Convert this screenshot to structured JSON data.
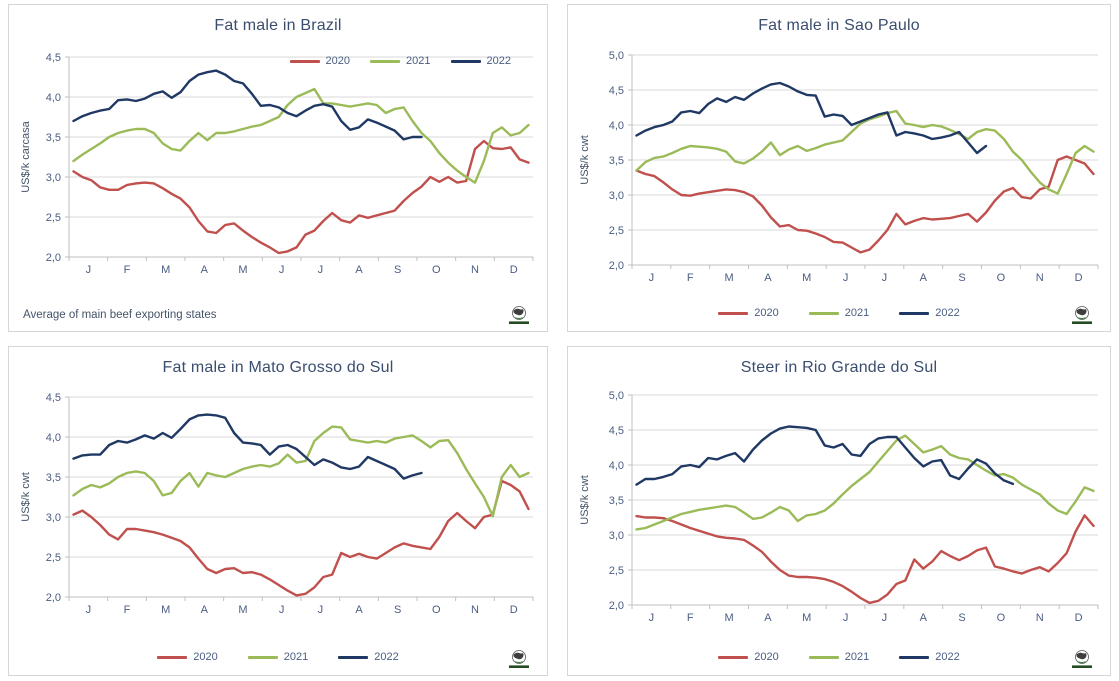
{
  "colors": {
    "red": "#C0504D",
    "green": "#9BBB59",
    "navy": "#1F3864",
    "grid": "#D9D9D9",
    "axis": "#BFBFBF",
    "tick_label": "#4A5D82",
    "title_text": "#3A4D6E"
  },
  "months": [
    "J",
    "F",
    "M",
    "A",
    "M",
    "J",
    "J",
    "A",
    "S",
    "O",
    "N",
    "D"
  ],
  "legend_years": [
    "2020",
    "2021",
    "2022"
  ],
  "chart_data": [
    {
      "type": "line",
      "title": "Fat male in Brazil",
      "ylabel": "US$/k carcasa",
      "footnote": "Average  of main beef exporting states",
      "ylim": [
        2.0,
        4.5
      ],
      "ytick_labels": [
        "2,0",
        "2,5",
        "3,0",
        "3,5",
        "4,0",
        "4,5"
      ],
      "x_unit": "weeks of year, labeled by month",
      "legend_position": "inside-top-right",
      "grid": true,
      "series": [
        {
          "name": "2020",
          "color_key": "red",
          "values": [
            3.07,
            3.0,
            2.96,
            2.87,
            2.84,
            2.84,
            2.9,
            2.92,
            2.93,
            2.92,
            2.86,
            2.79,
            2.73,
            2.62,
            2.45,
            2.32,
            2.3,
            2.4,
            2.42,
            2.33,
            2.25,
            2.18,
            2.12,
            2.05,
            2.07,
            2.12,
            2.28,
            2.33,
            2.45,
            2.55,
            2.46,
            2.43,
            2.52,
            2.49,
            2.52,
            2.55,
            2.58,
            2.7,
            2.8,
            2.88,
            3.0,
            2.94,
            3.0,
            2.93,
            2.95,
            3.35,
            3.45,
            3.36,
            3.35,
            3.37,
            3.22,
            3.18
          ]
        },
        {
          "name": "2021",
          "color_key": "green",
          "values": [
            3.2,
            3.28,
            3.35,
            3.42,
            3.5,
            3.55,
            3.58,
            3.6,
            3.6,
            3.55,
            3.42,
            3.35,
            3.33,
            3.45,
            3.55,
            3.46,
            3.55,
            3.55,
            3.57,
            3.6,
            3.63,
            3.65,
            3.7,
            3.75,
            3.9,
            4.0,
            4.05,
            4.1,
            3.92,
            3.92,
            3.9,
            3.88,
            3.9,
            3.92,
            3.9,
            3.8,
            3.85,
            3.87,
            3.7,
            3.55,
            3.45,
            3.3,
            3.18,
            3.08,
            3.0,
            2.93,
            3.2,
            3.55,
            3.62,
            3.52,
            3.55,
            3.65
          ]
        },
        {
          "name": "2022",
          "color_key": "navy",
          "values": [
            3.7,
            3.76,
            3.8,
            3.83,
            3.85,
            3.96,
            3.97,
            3.95,
            3.98,
            4.04,
            4.07,
            3.99,
            4.06,
            4.2,
            4.28,
            4.31,
            4.33,
            4.28,
            4.2,
            4.17,
            4.04,
            3.89,
            3.9,
            3.87,
            3.8,
            3.76,
            3.83,
            3.89,
            3.91,
            3.88,
            3.7,
            3.59,
            3.62,
            3.72,
            3.68,
            3.63,
            3.58,
            3.47,
            3.5,
            3.5
          ]
        }
      ]
    },
    {
      "type": "line",
      "title": "Fat male in Sao Paulo",
      "ylabel": "US$/k cwt",
      "ylim": [
        2.0,
        5.0
      ],
      "ytick_labels": [
        "2,0",
        "2,5",
        "3,0",
        "3,5",
        "4,0",
        "4,5",
        "5,0"
      ],
      "x_unit": "weeks of year, labeled by month",
      "legend_position": "bottom-center",
      "grid": true,
      "series": [
        {
          "name": "2020",
          "color_key": "red",
          "values": [
            3.35,
            3.3,
            3.27,
            3.18,
            3.08,
            3.0,
            2.99,
            3.02,
            3.04,
            3.06,
            3.08,
            3.07,
            3.04,
            2.98,
            2.85,
            2.68,
            2.55,
            2.57,
            2.5,
            2.49,
            2.45,
            2.4,
            2.33,
            2.32,
            2.25,
            2.18,
            2.22,
            2.35,
            2.5,
            2.73,
            2.58,
            2.63,
            2.67,
            2.65,
            2.66,
            2.67,
            2.7,
            2.73,
            2.62,
            2.75,
            2.92,
            3.05,
            3.1,
            2.97,
            2.95,
            3.08,
            3.12,
            3.5,
            3.55,
            3.5,
            3.45,
            3.3
          ]
        },
        {
          "name": "2021",
          "color_key": "green",
          "values": [
            3.35,
            3.47,
            3.53,
            3.55,
            3.6,
            3.66,
            3.7,
            3.69,
            3.68,
            3.66,
            3.62,
            3.48,
            3.45,
            3.52,
            3.62,
            3.75,
            3.57,
            3.65,
            3.7,
            3.63,
            3.67,
            3.72,
            3.75,
            3.78,
            3.9,
            4.02,
            4.08,
            4.12,
            4.17,
            4.2,
            4.02,
            4.0,
            3.97,
            4.0,
            3.98,
            3.93,
            3.87,
            3.8,
            3.9,
            3.94,
            3.92,
            3.8,
            3.62,
            3.5,
            3.33,
            3.18,
            3.08,
            3.02,
            3.3,
            3.6,
            3.7,
            3.62
          ]
        },
        {
          "name": "2022",
          "color_key": "navy",
          "values": [
            3.85,
            3.92,
            3.97,
            4.0,
            4.05,
            4.18,
            4.2,
            4.17,
            4.3,
            4.38,
            4.33,
            4.4,
            4.36,
            4.45,
            4.52,
            4.58,
            4.6,
            4.55,
            4.48,
            4.43,
            4.42,
            4.12,
            4.15,
            4.13,
            4.0,
            4.05,
            4.1,
            4.15,
            4.18,
            3.85,
            3.9,
            3.88,
            3.85,
            3.8,
            3.82,
            3.85,
            3.9,
            3.75,
            3.6,
            3.7
          ]
        }
      ]
    },
    {
      "type": "line",
      "title": "Fat male in Mato Grosso do Sul",
      "ylabel": "US$/k cwt",
      "ylim": [
        2.0,
        4.5
      ],
      "ytick_labels": [
        "2,0",
        "2,5",
        "3,0",
        "3,5",
        "4,0",
        "4,5"
      ],
      "x_unit": "weeks of year, labeled by month",
      "legend_position": "bottom-center",
      "grid": true,
      "series": [
        {
          "name": "2020",
          "color_key": "red",
          "values": [
            3.03,
            3.08,
            3.0,
            2.9,
            2.78,
            2.72,
            2.85,
            2.85,
            2.83,
            2.81,
            2.78,
            2.74,
            2.7,
            2.62,
            2.48,
            2.35,
            2.3,
            2.35,
            2.36,
            2.3,
            2.31,
            2.28,
            2.22,
            2.15,
            2.08,
            2.02,
            2.04,
            2.12,
            2.25,
            2.28,
            2.55,
            2.5,
            2.54,
            2.5,
            2.48,
            2.55,
            2.62,
            2.67,
            2.64,
            2.62,
            2.6,
            2.75,
            2.95,
            3.05,
            2.95,
            2.86,
            3.0,
            3.03,
            3.45,
            3.4,
            3.32,
            3.1
          ]
        },
        {
          "name": "2021",
          "color_key": "green",
          "values": [
            3.27,
            3.35,
            3.4,
            3.37,
            3.42,
            3.5,
            3.55,
            3.57,
            3.55,
            3.45,
            3.27,
            3.3,
            3.45,
            3.55,
            3.38,
            3.55,
            3.52,
            3.5,
            3.55,
            3.6,
            3.63,
            3.65,
            3.63,
            3.67,
            3.78,
            3.68,
            3.7,
            3.95,
            4.05,
            4.13,
            4.12,
            3.97,
            3.95,
            3.93,
            3.95,
            3.93,
            3.98,
            4.0,
            4.02,
            3.95,
            3.87,
            3.95,
            3.96,
            3.8,
            3.6,
            3.42,
            3.25,
            3.01,
            3.5,
            3.65,
            3.5,
            3.55
          ]
        },
        {
          "name": "2022",
          "color_key": "navy",
          "values": [
            3.73,
            3.77,
            3.78,
            3.78,
            3.9,
            3.95,
            3.93,
            3.97,
            4.02,
            3.98,
            4.05,
            3.99,
            4.1,
            4.22,
            4.27,
            4.28,
            4.27,
            4.24,
            4.05,
            3.93,
            3.92,
            3.9,
            3.78,
            3.88,
            3.9,
            3.85,
            3.75,
            3.65,
            3.72,
            3.68,
            3.62,
            3.6,
            3.63,
            3.75,
            3.7,
            3.65,
            3.6,
            3.48,
            3.52,
            3.55
          ]
        }
      ]
    },
    {
      "type": "line",
      "title": "Steer  in Rio Grande do Sul",
      "ylabel": "US$/k cwt",
      "ylim": [
        2.0,
        5.0
      ],
      "ytick_labels": [
        "2,0",
        "2,5",
        "3,0",
        "3,5",
        "4,0",
        "4,5",
        "5,0"
      ],
      "x_unit": "weeks of year, labeled by month",
      "legend_position": "bottom-center",
      "grid": true,
      "series": [
        {
          "name": "2020",
          "color_key": "red",
          "values": [
            3.27,
            3.25,
            3.25,
            3.24,
            3.2,
            3.15,
            3.1,
            3.06,
            3.02,
            2.98,
            2.96,
            2.95,
            2.93,
            2.85,
            2.76,
            2.62,
            2.5,
            2.42,
            2.4,
            2.4,
            2.39,
            2.37,
            2.33,
            2.27,
            2.19,
            2.1,
            2.03,
            2.06,
            2.15,
            2.3,
            2.35,
            2.65,
            2.52,
            2.62,
            2.77,
            2.7,
            2.64,
            2.7,
            2.78,
            2.82,
            2.55,
            2.52,
            2.48,
            2.45,
            2.5,
            2.54,
            2.48,
            2.6,
            2.74,
            3.05,
            3.28,
            3.13
          ]
        },
        {
          "name": "2021",
          "color_key": "green",
          "values": [
            3.08,
            3.1,
            3.15,
            3.2,
            3.25,
            3.3,
            3.33,
            3.36,
            3.38,
            3.4,
            3.42,
            3.4,
            3.32,
            3.23,
            3.25,
            3.32,
            3.4,
            3.35,
            3.2,
            3.28,
            3.3,
            3.35,
            3.45,
            3.58,
            3.7,
            3.8,
            3.9,
            4.05,
            4.2,
            4.35,
            4.42,
            4.3,
            4.18,
            4.22,
            4.27,
            4.15,
            4.1,
            4.08,
            4.0,
            3.92,
            3.85,
            3.87,
            3.82,
            3.72,
            3.65,
            3.58,
            3.45,
            3.35,
            3.3,
            3.48,
            3.68,
            3.63
          ]
        },
        {
          "name": "2022",
          "color_key": "navy",
          "values": [
            3.72,
            3.8,
            3.8,
            3.83,
            3.87,
            3.98,
            4.0,
            3.97,
            4.1,
            4.08,
            4.13,
            4.17,
            4.05,
            4.22,
            4.35,
            4.45,
            4.52,
            4.55,
            4.54,
            4.53,
            4.5,
            4.28,
            4.25,
            4.3,
            4.15,
            4.13,
            4.3,
            4.38,
            4.4,
            4.4,
            4.25,
            4.1,
            3.98,
            4.05,
            4.07,
            3.85,
            3.8,
            3.95,
            4.08,
            4.02,
            3.88,
            3.78,
            3.73
          ]
        }
      ]
    }
  ],
  "logo": {
    "name": "globe logo with caption bar"
  }
}
